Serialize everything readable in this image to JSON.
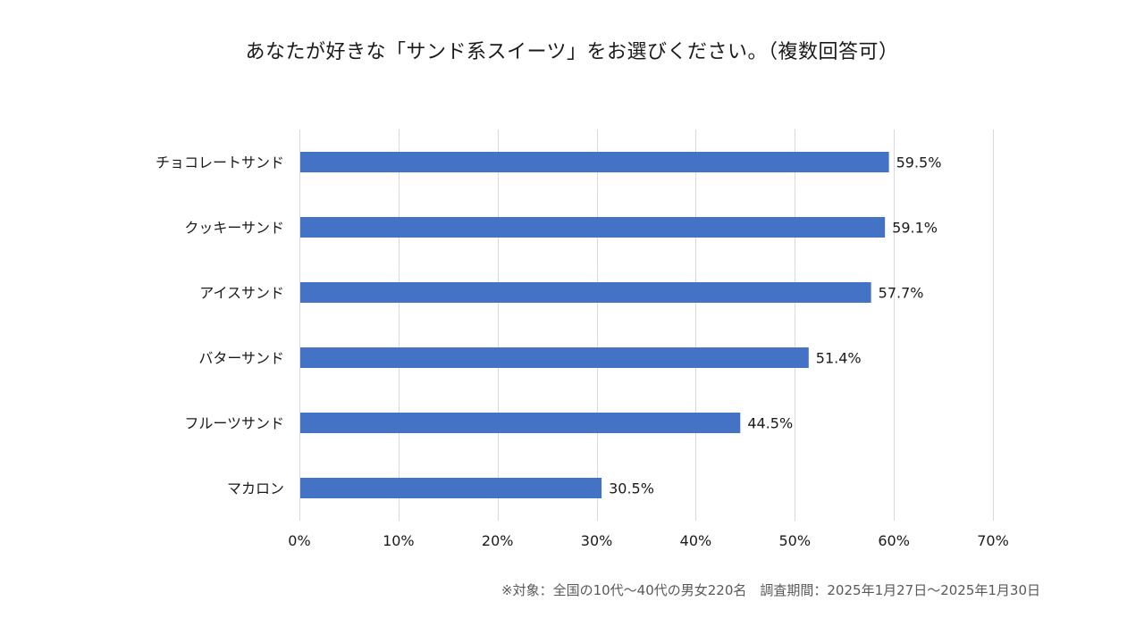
{
  "chart_data": {
    "type": "bar",
    "orientation": "horizontal",
    "title": "あなたが好きな「サンド系スイーツ」をお選びください。（複数回答可）",
    "categories": [
      "チョコレートサンド",
      "クッキーサンド",
      "アイスサンド",
      "バターサンド",
      "フルーツサンド",
      "マカロン"
    ],
    "values": [
      59.5,
      59.1,
      57.7,
      51.4,
      44.5,
      30.5
    ],
    "data_labels": [
      "59.5%",
      "59.1%",
      "57.7%",
      "51.4%",
      "44.5%",
      "30.5%"
    ],
    "xlim": [
      0,
      70
    ],
    "xticks": [
      0,
      10,
      20,
      30,
      40,
      50,
      60,
      70
    ],
    "xtick_labels": [
      "0%",
      "10%",
      "20%",
      "30%",
      "40%",
      "50%",
      "60%",
      "70%"
    ],
    "xlabel": "",
    "ylabel": "",
    "grid": true,
    "legend": "none",
    "bar_color": "#4472C4",
    "grid_color": "#D9D9D9"
  },
  "footnote": "※対象：全国の10代～40代の男女220名　調査期間：2025年1月27日～2025年1月30日"
}
